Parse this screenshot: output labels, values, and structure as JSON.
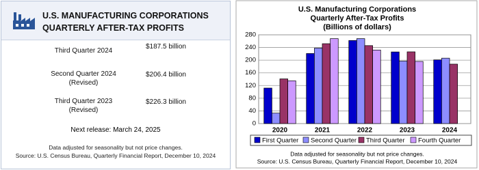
{
  "panel": {
    "title_lines": [
      "U.S. MANUFACTURING CORPORATIONS",
      "QUARTERLY AFTER-TAX PROFITS"
    ],
    "rows": [
      {
        "label_lines": [
          "Third Quarter 2024"
        ],
        "value": "$187.5 billion"
      },
      {
        "label_lines": [
          "Second Quarter 2024",
          "(Revised)"
        ],
        "value": "$206.4 billion"
      },
      {
        "label_lines": [
          "Third Quarter 2023",
          "(Revised)"
        ],
        "value": "$226.3 billion"
      }
    ],
    "next_release": "Next release: March 24, 2025",
    "notes": [
      "Data adjusted for seasonality but not price changes.",
      "Source: U.S. Census Bureau, Quarterly Financial Report, December 10, 2024"
    ]
  },
  "chart_data": {
    "type": "bar",
    "title_lines": [
      "U.S. Manufacturing Corporations",
      "Quarterly After-Tax Profits",
      "(Billions of dollars)"
    ],
    "categories": [
      "2020",
      "2021",
      "2022",
      "2023",
      "2024"
    ],
    "series": [
      {
        "name": "First Quarter",
        "color": "#0000cc",
        "values": [
          112,
          221,
          262,
          226,
          201
        ]
      },
      {
        "name": "Second Quarter",
        "color": "#8d8dff",
        "values": [
          33,
          238,
          268,
          197,
          206.4
        ]
      },
      {
        "name": "Third Quarter",
        "color": "#993366",
        "values": [
          141,
          252,
          246,
          226.3,
          187.5
        ]
      },
      {
        "name": "Fourth Quarter",
        "color": "#cc99ff",
        "values": [
          135,
          268,
          232,
          196,
          null
        ]
      }
    ],
    "ylim": [
      0,
      280
    ],
    "yticks": [
      0,
      40,
      80,
      120,
      160,
      200,
      240,
      280
    ],
    "grid": true,
    "legend": "bottom",
    "notes": [
      "Data adjusted for seasonality but not price changes.",
      "Source: U.S. Census Bureau, Quarterly Financial Report, December 10, 2024"
    ]
  }
}
